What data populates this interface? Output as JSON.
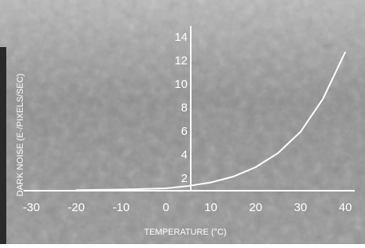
{
  "chart_data": {
    "type": "line",
    "x_label": "TEMPERATURE (°C)",
    "y_label": "DARK NOISE (E-/PIXELS/SEC)",
    "x": [
      -20,
      -10,
      0,
      5,
      10,
      15,
      20,
      25,
      30,
      35,
      40
    ],
    "series": [
      {
        "color": "#ffffff",
        "values": [
          1.05,
          1.1,
          1.2,
          1.4,
          1.7,
          2.2,
          3,
          4.2,
          6,
          8.8,
          12.8
        ]
      }
    ],
    "xlim": [
      -30,
      40
    ],
    "xticks": [
      -30,
      -20,
      -10,
      0,
      10,
      20,
      30,
      40
    ],
    "ylim": [
      1,
      15
    ],
    "yticks": [
      2,
      4,
      6,
      8,
      10,
      12,
      14
    ]
  }
}
